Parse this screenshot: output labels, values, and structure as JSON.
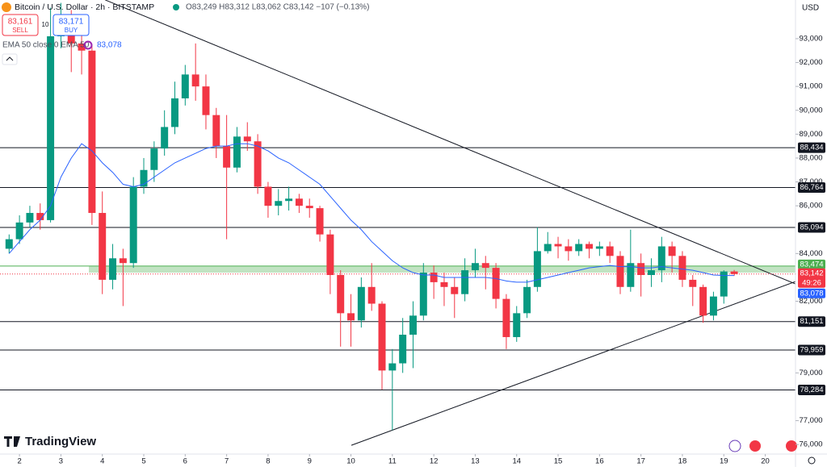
{
  "chart_data": {
    "type": "candlestick",
    "title": "Bitcoin / U.S. Dollar · 2h · BITSTAMP",
    "ohlc_text": "O83,249 H83,312 L83,062 C83,142 −107 (−0.13%)",
    "sell": {
      "price": "83,161",
      "label": "SELL"
    },
    "buy": {
      "price": "83,171",
      "label": "BUY"
    },
    "quantity": "10",
    "indicator_label": "EMA 50 close 0 EMA 50",
    "indicator_value": "83,078",
    "currency": "USD",
    "brand": "TradingView",
    "up_color": "#089981",
    "down_color": "#f23645",
    "x": [
      1.75,
      2,
      2.25,
      2.5,
      2.75,
      3,
      3.25,
      3.5,
      3.75,
      4,
      4.25,
      4.5,
      4.75,
      5,
      5.25,
      5.5,
      5.75,
      6,
      6.25,
      6.5,
      6.75,
      7,
      7.25,
      7.5,
      7.75,
      8,
      8.25,
      8.5,
      8.75,
      9,
      9.25,
      9.5,
      9.75,
      10,
      10.25,
      10.5,
      10.75,
      11,
      11.25,
      11.5,
      11.75,
      12,
      12.25,
      12.5,
      12.75,
      13,
      13.25,
      13.5,
      13.75,
      14,
      14.25,
      14.5,
      14.75,
      15,
      15.25,
      15.5,
      15.75,
      16,
      16.25,
      16.5,
      16.75,
      17,
      17.25,
      17.5,
      17.75,
      18,
      18.25,
      18.5,
      18.75,
      19,
      19.25
    ],
    "open": [
      84200,
      84600,
      85300,
      85700,
      85400,
      93100,
      93800,
      92800,
      92500,
      85700,
      82900,
      83800,
      83600,
      86800,
      87500,
      88400,
      89300,
      90500,
      91500,
      91000,
      89800,
      88500,
      87600,
      88900,
      88700,
      86800,
      86000,
      86200,
      86300,
      86000,
      85900,
      84800,
      83100,
      81500,
      81200,
      82600,
      81900,
      79100,
      79400,
      80600,
      81400,
      83200,
      82800,
      82600,
      82300,
      83300,
      83600,
      83400,
      82100,
      80500,
      81500,
      82600,
      84100,
      84400,
      84300,
      84100,
      84400,
      84200,
      84300,
      83900,
      82600,
      83600,
      83100,
      83300,
      84300,
      83900,
      82900,
      82600,
      81400,
      82200,
      83249
    ],
    "high": [
      84800,
      85600,
      86000,
      86100,
      94300,
      94500,
      94200,
      93600,
      92700,
      86600,
      84400,
      84200,
      87200,
      88000,
      88700,
      90000,
      91200,
      91900,
      92800,
      91500,
      90100,
      89800,
      89300,
      89500,
      89000,
      87000,
      86700,
      86800,
      86500,
      86300,
      86000,
      85000,
      83300,
      82300,
      83000,
      83600,
      82000,
      80000,
      81300,
      82000,
      83600,
      83500,
      83200,
      83000,
      83800,
      84200,
      83900,
      83600,
      82300,
      81800,
      82900,
      85100,
      84900,
      84700,
      84600,
      84600,
      84500,
      84500,
      84500,
      84100,
      85000,
      84000,
      83800,
      84700,
      84500,
      84100,
      83100,
      82700,
      82400,
      83300,
      83312
    ],
    "low": [
      84000,
      84400,
      85100,
      85000,
      85300,
      92600,
      91600,
      91500,
      85200,
      82300,
      82500,
      81800,
      83400,
      86500,
      87000,
      88100,
      89000,
      90200,
      90400,
      89200,
      88000,
      84600,
      87400,
      88300,
      86500,
      85500,
      85600,
      85800,
      85700,
      85500,
      84500,
      82300,
      80100,
      80100,
      80900,
      81600,
      78300,
      76600,
      79000,
      79200,
      81200,
      82100,
      81800,
      81300,
      82000,
      83000,
      82500,
      81700,
      80000,
      80300,
      81300,
      82400,
      84000,
      83800,
      83700,
      83900,
      83800,
      83900,
      83600,
      82300,
      82400,
      82200,
      82600,
      82800,
      83200,
      82600,
      81800,
      81100,
      81200,
      81900,
      83062
    ],
    "close": [
      84600,
      85300,
      85700,
      85400,
      93100,
      93800,
      92800,
      92500,
      85700,
      82900,
      83800,
      83600,
      86800,
      87500,
      88400,
      89300,
      90500,
      91500,
      91000,
      89800,
      88500,
      87600,
      88900,
      88700,
      86800,
      86000,
      86200,
      86300,
      86000,
      85900,
      84800,
      83100,
      81500,
      81200,
      82600,
      81900,
      79100,
      79400,
      80600,
      81400,
      83200,
      82800,
      82600,
      82300,
      83300,
      83600,
      83400,
      82100,
      80500,
      81500,
      82600,
      84100,
      84400,
      84300,
      84100,
      84400,
      84200,
      84300,
      83900,
      82600,
      83600,
      83100,
      83300,
      84300,
      83900,
      82900,
      82600,
      81400,
      82200,
      83249,
      83142
    ],
    "series": [
      {
        "name": "EMA 50",
        "color": "#2962ff",
        "values": [
          84000,
          84500,
          85000,
          85400,
          86000,
          87200,
          88000,
          88600,
          88300,
          87800,
          87400,
          86900,
          86800,
          86900,
          87200,
          87500,
          87800,
          88000,
          88200,
          88400,
          88500,
          88500,
          88600,
          88600,
          88500,
          88300,
          88000,
          87800,
          87500,
          87200,
          86900,
          86400,
          85900,
          85400,
          85000,
          84500,
          84100,
          83700,
          83400,
          83200,
          83100,
          83100,
          83000,
          83000,
          83000,
          83000,
          83000,
          82950,
          82850,
          82800,
          82800,
          82900,
          83000,
          83100,
          83200,
          83300,
          83400,
          83450,
          83500,
          83450,
          83450,
          83400,
          83400,
          83450,
          83400,
          83350,
          83300,
          83200,
          83100,
          83080,
          83078
        ]
      }
    ],
    "levels": [
      {
        "value": 88434,
        "label": "88,434"
      },
      {
        "value": 86764,
        "label": "86,764"
      },
      {
        "value": 85094,
        "label": "85,094"
      },
      {
        "value": 81151,
        "label": "81,151"
      },
      {
        "value": 79959,
        "label": "79,959"
      },
      {
        "value": 78284,
        "label": "78,284"
      }
    ],
    "zone": {
      "from": 83200,
      "to": 83474,
      "label": "83,474",
      "color": "#4caf50"
    },
    "price_label": {
      "value": 83142,
      "label": "83,142"
    },
    "countdown": "49:26",
    "ema_label": {
      "value": 83078,
      "label": "83,078"
    },
    "trendlines": [
      {
        "x": [
          4.07,
          20.73
        ],
        "y": [
          94622,
          82726
        ]
      },
      {
        "x": [
          10.01,
          20.73
        ],
        "y": [
          75968,
          82827
        ]
      }
    ],
    "xlim": [
      1.53,
      20.73
    ],
    "ylim": [
      75600,
      94620
    ],
    "xticks": [
      2,
      3,
      4,
      5,
      6,
      7,
      8,
      9,
      10,
      11,
      12,
      13,
      14,
      15,
      16,
      17,
      18,
      19,
      20
    ],
    "yticks": [
      {
        "value": 76000,
        "label": "76,000"
      },
      {
        "value": 77000,
        "label": "77,000"
      },
      {
        "value": 79000,
        "label": "79,000"
      },
      {
        "value": 82000,
        "label": "82,000"
      },
      {
        "value": 84000,
        "label": "84,000"
      },
      {
        "value": 86000,
        "label": "86,000"
      },
      {
        "value": 87000,
        "label": "87,000"
      },
      {
        "value": 88000,
        "label": "88,000"
      },
      {
        "value": 89000,
        "label": "89,000"
      },
      {
        "value": 90000,
        "label": "90,000"
      },
      {
        "value": 91000,
        "label": "91,000"
      },
      {
        "value": 92000,
        "label": "92,000"
      },
      {
        "value": 93000,
        "label": "93,000"
      }
    ]
  }
}
